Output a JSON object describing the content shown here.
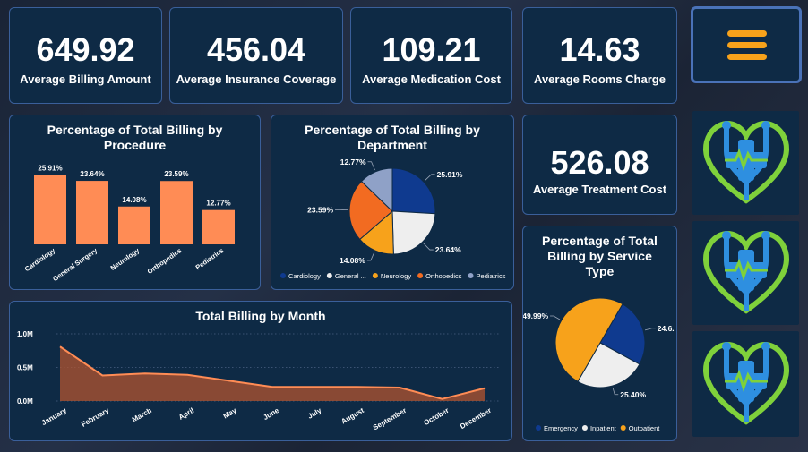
{
  "kpis": {
    "billing": {
      "value": "649.92",
      "label": "Average Billing Amount"
    },
    "insurance": {
      "value": "456.04",
      "label": "Average Insurance Coverage"
    },
    "medication": {
      "value": "109.21",
      "label": "Average Medication Cost"
    },
    "rooms": {
      "value": "14.63",
      "label": "Average Rooms Charge"
    },
    "treatment": {
      "value": "526.08",
      "label": "Average Treatment Cost"
    }
  },
  "icons": {
    "menu": "hamburger-menu-icon",
    "logo": "heart-stethoscope-medical-cross-icon"
  },
  "colors": {
    "panel_bg": "#0e2a45",
    "panel_border": "#3a5f9a",
    "bar": "#ff8c55",
    "cardiology": "#0f3a8f",
    "general_surgery": "#eeeeee",
    "neurology": "#f7a21b",
    "orthopedics": "#f26b21",
    "pediatrics": "#8fa1c7",
    "menu_accent": "#f7a21b"
  },
  "chart_data": [
    {
      "id": "procedure",
      "type": "bar",
      "title": "Percentage of Total Billing by Procedure",
      "categories": [
        "Cardiology",
        "General Surgery",
        "Neurology",
        "Orthopedics",
        "Pediatrics"
      ],
      "values": [
        25.91,
        23.64,
        14.08,
        23.59,
        12.77
      ],
      "data_labels": [
        "25.91%",
        "23.64%",
        "14.08%",
        "23.59%",
        "12.77%"
      ],
      "ylim": [
        0,
        30
      ],
      "grid": false
    },
    {
      "id": "department",
      "type": "pie",
      "title": "Percentage of Total Billing by Department",
      "categories": [
        "Cardiology",
        "General Surgery",
        "Neurology",
        "Orthopedics",
        "Pediatrics"
      ],
      "legend_labels": [
        "Cardiology",
        "General ...",
        "Neurology",
        "Orthopedics",
        "Pediatrics"
      ],
      "values": [
        25.91,
        23.64,
        14.08,
        23.59,
        12.77
      ],
      "data_labels": [
        "25.91%",
        "23.64%",
        "14.08%",
        "23.59%",
        "12.77%"
      ],
      "legend": "bottom"
    },
    {
      "id": "service",
      "type": "pie",
      "title": "Percentage of Total Billing by Service Type",
      "categories": [
        "Emergency",
        "Inpatient",
        "Outpatient"
      ],
      "values": [
        24.61,
        25.4,
        49.99
      ],
      "data_labels": [
        "24.6...",
        "25.40%",
        "49.99%"
      ],
      "legend": "bottom"
    },
    {
      "id": "month",
      "type": "area",
      "title": "Total Billing by Month",
      "categories": [
        "January",
        "February",
        "March",
        "April",
        "May",
        "June",
        "July",
        "August",
        "September",
        "October",
        "December"
      ],
      "values": [
        810000,
        380000,
        410000,
        390000,
        300000,
        210000,
        210000,
        210000,
        200000,
        30000,
        190000
      ],
      "yticks": [
        "0.0M",
        "0.5M",
        "1.0M"
      ],
      "ylim": [
        0,
        1000000
      ],
      "grid": true
    }
  ]
}
